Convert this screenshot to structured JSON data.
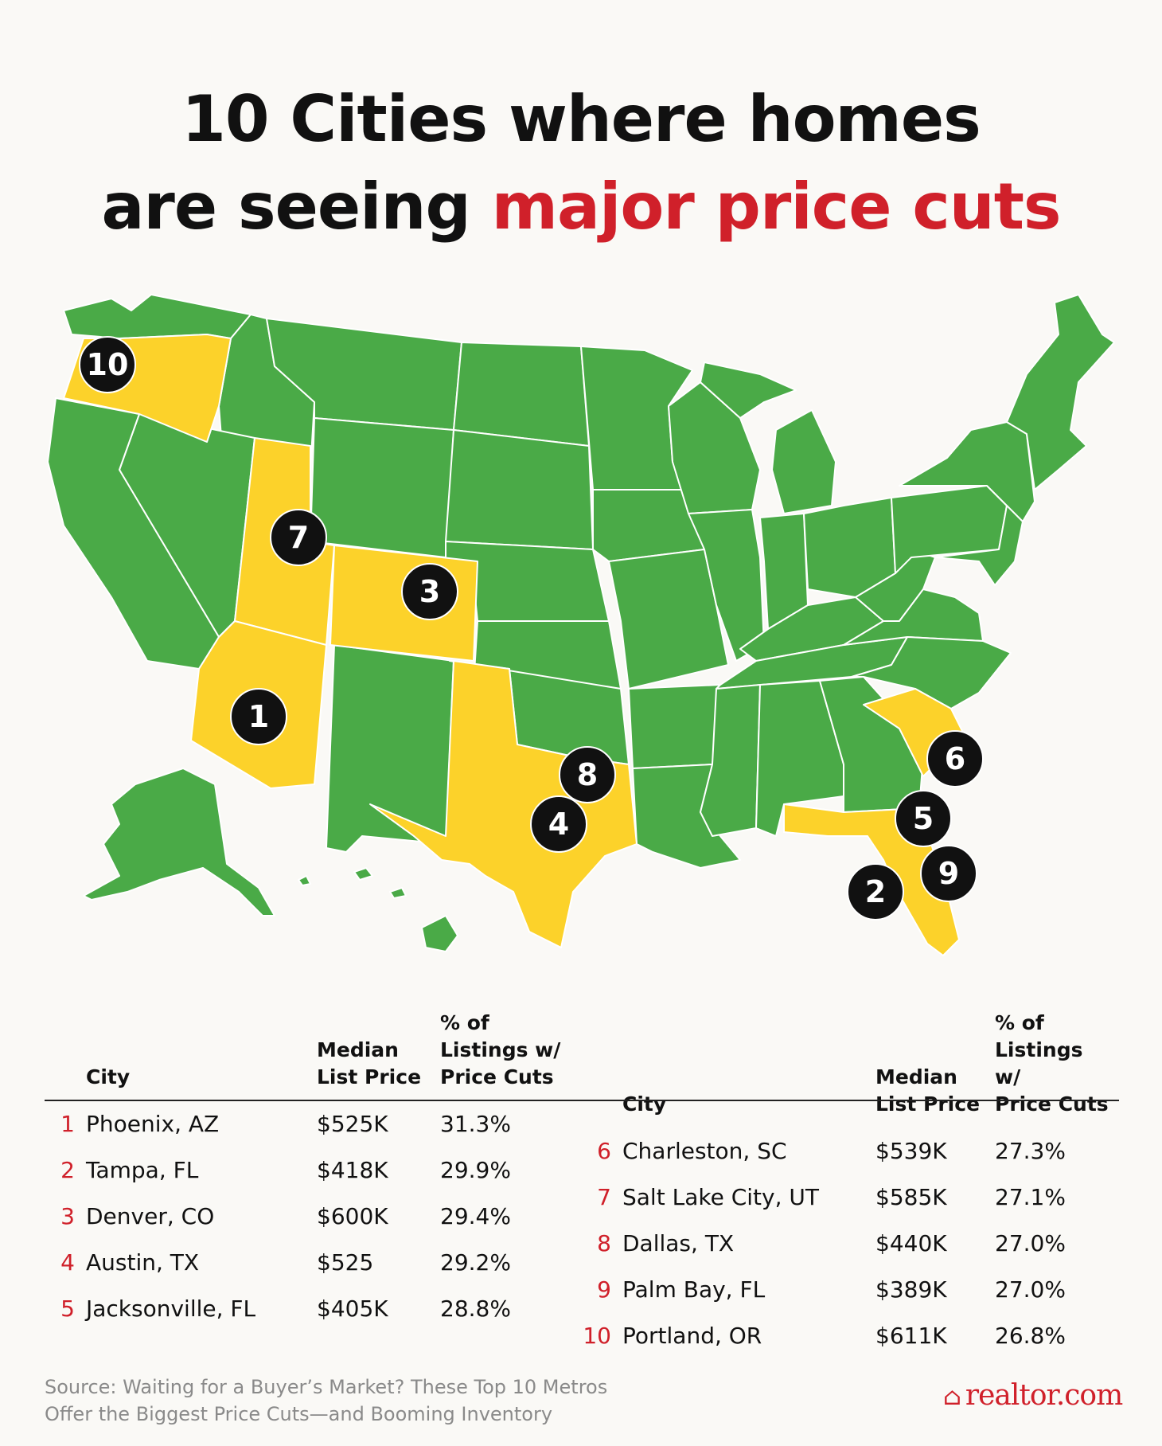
{
  "title": {
    "line1": "10 Cities where homes",
    "line2_plain": "are seeing ",
    "line2_accent": "major price cuts"
  },
  "colors": {
    "accent": "#d0202a",
    "highlight_state": "#fcd22a",
    "other_state": "#4aaa47",
    "marker": "#111111"
  },
  "map": {
    "highlighted_states": [
      "Oregon",
      "Utah",
      "Colorado",
      "Arizona",
      "Texas",
      "South Carolina",
      "Florida"
    ],
    "markers": [
      "1",
      "2",
      "3",
      "4",
      "5",
      "6",
      "7",
      "8",
      "9",
      "10"
    ]
  },
  "table": {
    "headers": {
      "city": "City",
      "price_line1": "Median",
      "price_line2": "List Price",
      "cuts_line1": "% of",
      "cuts_line2": "Listings w/",
      "cuts_line3": "Price Cuts"
    },
    "left": [
      {
        "rank": "1",
        "city": "Phoenix, AZ",
        "price": "$525K",
        "cuts": "31.3%"
      },
      {
        "rank": "2",
        "city": "Tampa, FL",
        "price": "$418K",
        "cuts": "29.9%"
      },
      {
        "rank": "3",
        "city": "Denver, CO",
        "price": "$600K",
        "cuts": "29.4%"
      },
      {
        "rank": "4",
        "city": "Austin, TX",
        "price": "$525",
        "cuts": "29.2%"
      },
      {
        "rank": "5",
        "city": "Jacksonville, FL",
        "price": "$405K",
        "cuts": "28.8%"
      }
    ],
    "right": [
      {
        "rank": "6",
        "city": "Charleston, SC",
        "price": "$539K",
        "cuts": "27.3%"
      },
      {
        "rank": "7",
        "city": "Salt Lake City, UT",
        "price": "$585K",
        "cuts": "27.1%"
      },
      {
        "rank": "8",
        "city": "Dallas, TX",
        "price": "$440K",
        "cuts": "27.0%"
      },
      {
        "rank": "9",
        "city": "Palm Bay, FL",
        "price": "$389K",
        "cuts": "27.0%"
      },
      {
        "rank": "10",
        "city": "Portland, OR",
        "price": "$611K",
        "cuts": "26.8%"
      }
    ]
  },
  "source": {
    "line1": "Source: Waiting for a Buyer’s Market? These Top 10 Metros",
    "line2": "Offer the Biggest Price Cuts—and Booming Inventory"
  },
  "logo": {
    "brand": "realtor",
    "suffix": ".com"
  }
}
